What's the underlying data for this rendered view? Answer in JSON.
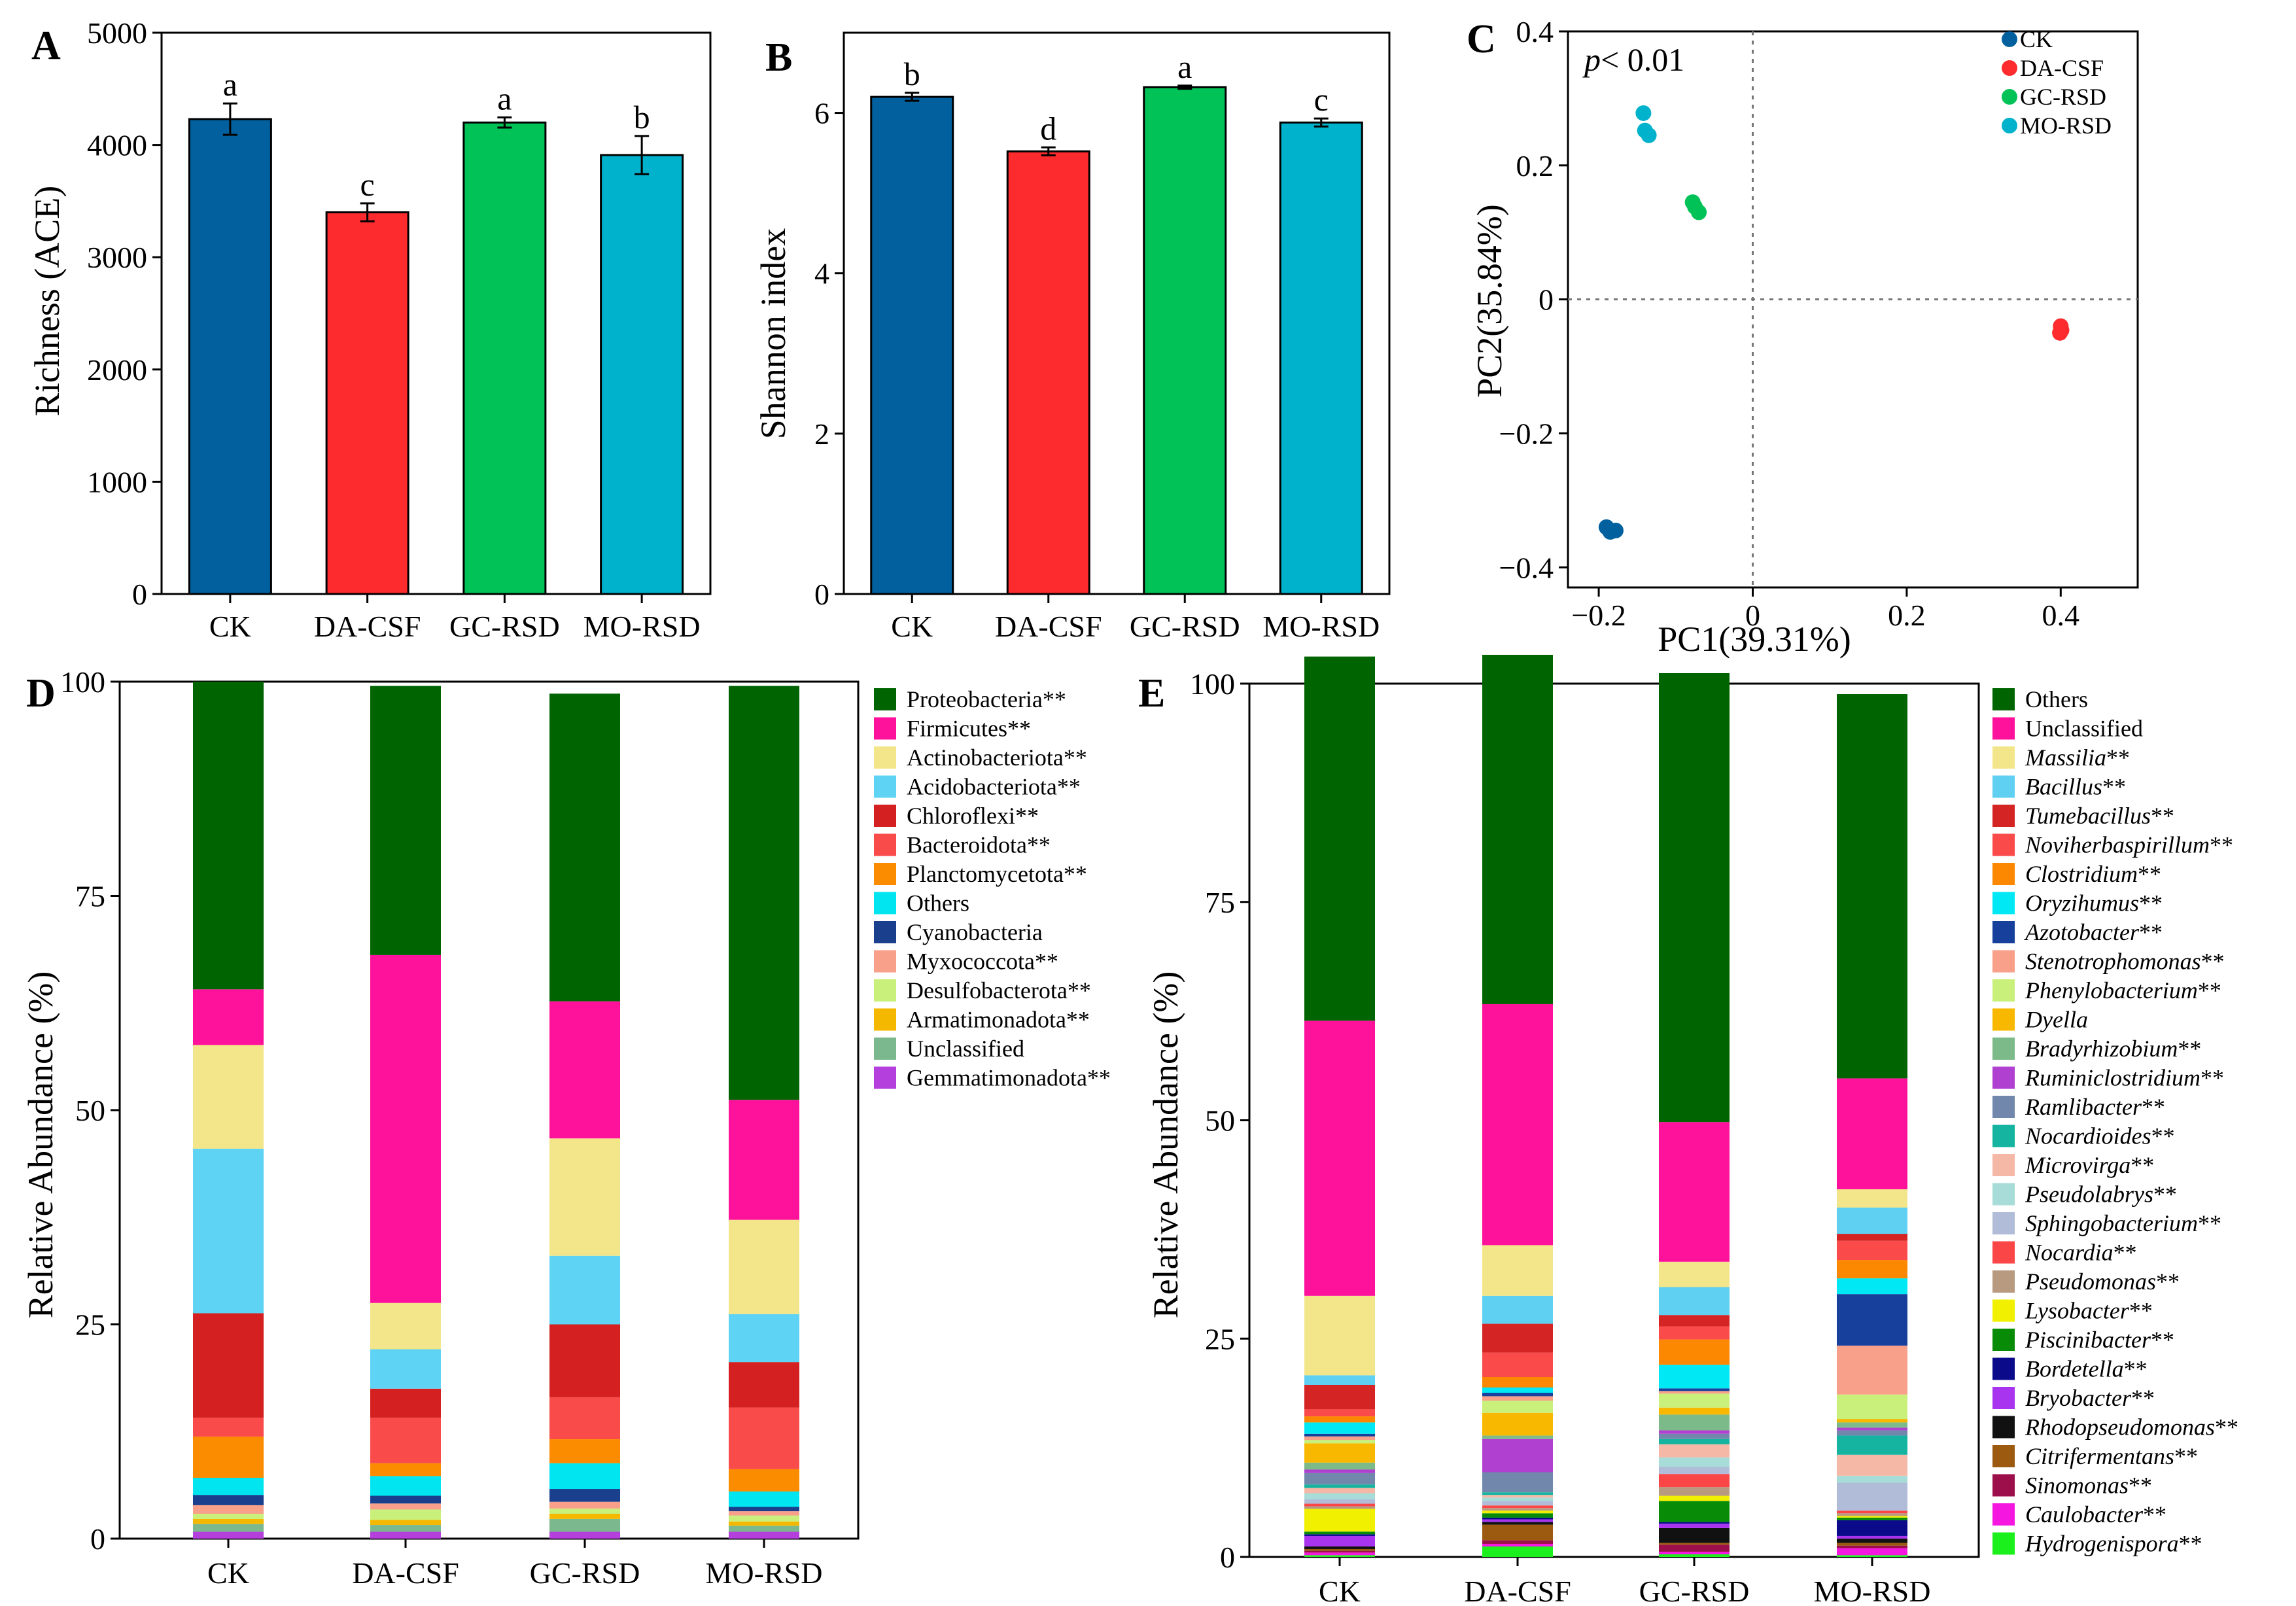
{
  "colors": {
    "CK": "#02609e",
    "DA-CSF": "#fd2a2e",
    "GC-RSD": "#00c256",
    "MO-RSD": "#00b2cc"
  },
  "panels": {
    "A": {
      "letter": "A"
    },
    "B": {
      "letter": "B"
    },
    "C": {
      "letter": "C",
      "pvalue": "< 0.01",
      "pvalue_p": "p"
    },
    "D": {
      "letter": "D"
    },
    "E": {
      "letter": "E"
    }
  },
  "chart_data": [
    {
      "id": "A",
      "type": "bar",
      "ylabel": "Richness (ACE)",
      "xlabel": "",
      "ylim": [
        0,
        5000
      ],
      "yticks": [
        0,
        1000,
        2000,
        3000,
        4000,
        5000
      ],
      "categories": [
        "CK",
        "DA-CSF",
        "GC-RSD",
        "MO-RSD"
      ],
      "values": [
        4230,
        3400,
        4200,
        3910
      ],
      "errors": [
        140,
        80,
        45,
        170
      ],
      "letters": [
        "a",
        "c",
        "a",
        "b"
      ]
    },
    {
      "id": "B",
      "type": "bar",
      "ylabel": "Shannon index",
      "xlabel": "",
      "ylim": [
        0,
        7
      ],
      "yticks": [
        0,
        2,
        4,
        6
      ],
      "categories": [
        "CK",
        "DA-CSF",
        "GC-RSD",
        "MO-RSD"
      ],
      "values": [
        6.2,
        5.52,
        6.32,
        5.88
      ],
      "errors": [
        0.05,
        0.05,
        0.02,
        0.05
      ],
      "letters": [
        "b",
        "d",
        "a",
        "c"
      ]
    },
    {
      "id": "C",
      "type": "scatter",
      "xlabel": "PC1(39.31%)",
      "ylabel": "PC2(35.84%)",
      "xlim": [
        -0.24,
        0.5
      ],
      "ylim": [
        -0.43,
        0.4
      ],
      "xticks": [
        -0.2,
        0,
        0.2,
        0.4
      ],
      "xtick_labels": [
        "−0.2",
        "0",
        "0.2",
        "0.4"
      ],
      "yticks": [
        -0.4,
        -0.2,
        0,
        0.2,
        0.4
      ],
      "ytick_labels": [
        "−0.4",
        "−0.2",
        "0",
        "0.2",
        "0.4"
      ],
      "series": [
        {
          "name": "CK",
          "points": [
            [
              -0.19,
              -0.34
            ],
            [
              -0.185,
              -0.347
            ],
            [
              -0.178,
              -0.345
            ]
          ]
        },
        {
          "name": "DA-CSF",
          "points": [
            [
              0.4,
              -0.04
            ],
            [
              0.401,
              -0.046
            ],
            [
              0.399,
              -0.05
            ]
          ]
        },
        {
          "name": "GC-RSD",
          "points": [
            [
              -0.078,
              0.145
            ],
            [
              -0.075,
              0.138
            ],
            [
              -0.07,
              0.13
            ]
          ]
        },
        {
          "name": "MO-RSD",
          "points": [
            [
              -0.142,
              0.278
            ],
            [
              -0.14,
              0.252
            ],
            [
              -0.135,
              0.245
            ]
          ]
        }
      ]
    },
    {
      "id": "D",
      "type": "bar",
      "stacked": true,
      "ylabel": "Relative Abundance (%)",
      "ylim": [
        0,
        100
      ],
      "yticks": [
        0,
        25,
        50,
        75,
        100
      ],
      "categories": [
        "CK",
        "DA-CSF",
        "GC-RSD",
        "MO-RSD"
      ],
      "series": [
        {
          "name": "Gemmatimonadota**",
          "color": "#b43fdc",
          "values": [
            0.8,
            0.8,
            0.8,
            0.8
          ]
        },
        {
          "name": "Unclassified",
          "color": "#7cb88e",
          "values": [
            0.9,
            0.8,
            1.5,
            0.7
          ]
        },
        {
          "name": "Armatimonadota**",
          "color": "#f5b800",
          "values": [
            0.6,
            0.6,
            0.6,
            0.5
          ]
        },
        {
          "name": "Desulfobacterota**",
          "color": "#c8f07a",
          "values": [
            0.6,
            1.2,
            0.6,
            0.7
          ]
        },
        {
          "name": "Myxococcota**",
          "color": "#f8a08a",
          "values": [
            1.0,
            0.7,
            0.8,
            0.5
          ]
        },
        {
          "name": "Cyanobacteria",
          "color": "#1a3f8c",
          "values": [
            1.2,
            0.9,
            1.5,
            0.5
          ]
        },
        {
          "name": "Others",
          "color": "#00e5f0",
          "values": [
            2.0,
            2.3,
            3.0,
            1.8
          ]
        },
        {
          "name": "Planctomycetota**",
          "color": "#fb8c00",
          "values": [
            4.8,
            1.5,
            2.8,
            2.6
          ]
        },
        {
          "name": "Bacteroidota**",
          "color": "#fa4b4b",
          "values": [
            2.2,
            5.3,
            4.9,
            7.2
          ]
        },
        {
          "name": "Chloroflexi**",
          "color": "#d42020",
          "values": [
            12.2,
            3.4,
            8.5,
            5.3
          ]
        },
        {
          "name": "Acidobacteriota**",
          "color": "#5fd3f4",
          "values": [
            19.2,
            4.6,
            8.0,
            5.6
          ]
        },
        {
          "name": "Actinobacteriota**",
          "color": "#f3e68a",
          "values": [
            12.1,
            5.4,
            13.7,
            11.0
          ]
        },
        {
          "name": "Firmicutes**",
          "color": "#fe129c",
          "values": [
            6.5,
            40.6,
            16.0,
            14.0
          ]
        },
        {
          "name": "Proteobacteria**",
          "color": "#006400",
          "values": [
            35.9,
            31.4,
            35.9,
            48.3
          ]
        }
      ]
    },
    {
      "id": "E",
      "type": "bar",
      "stacked": true,
      "ylabel": "Relative Abundance (%)",
      "ylim": [
        0,
        100
      ],
      "yticks": [
        0,
        25,
        50,
        75,
        100
      ],
      "categories": [
        "CK",
        "DA-CSF",
        "GC-RSD",
        "MO-RSD"
      ],
      "series": [
        {
          "name": "Hydrogenispora**",
          "color": "#1cf01c",
          "values": [
            0.2,
            1.2,
            0.3,
            0.2
          ]
        },
        {
          "name": "Caulobacter**",
          "color": "#f516e0",
          "values": [
            0.3,
            0.3,
            0.3,
            0.8
          ]
        },
        {
          "name": "Sinomonas**",
          "color": "#9c0f4a",
          "values": [
            0.2,
            0.4,
            0.8,
            0.3
          ]
        },
        {
          "name": "Citrifermentans**",
          "color": "#9b5a10",
          "values": [
            0.2,
            1.8,
            0.2,
            0.3
          ]
        },
        {
          "name": "Rhodopseudomonas**",
          "color": "#111111",
          "values": [
            0.3,
            0.3,
            1.7,
            0.5
          ]
        },
        {
          "name": "Bryobacter**",
          "color": "#a834f0",
          "values": [
            1.2,
            0.3,
            0.5,
            0.3
          ]
        },
        {
          "name": "Bordetella**",
          "color": "#0a0a8a",
          "values": [
            0.2,
            0.2,
            0.2,
            1.8
          ]
        },
        {
          "name": "Piscinibacter**",
          "color": "#088c08",
          "values": [
            0.3,
            0.5,
            2.4,
            0.3
          ]
        },
        {
          "name": "Lysobacter**",
          "color": "#f0f000",
          "values": [
            2.6,
            0.3,
            0.6,
            0.2
          ]
        },
        {
          "name": "Pseudomonas**",
          "color": "#b89a80",
          "values": [
            0.3,
            0.3,
            1.0,
            0.3
          ]
        },
        {
          "name": "Nocardia**",
          "color": "#fa4646",
          "values": [
            0.3,
            0.3,
            1.5,
            0.3
          ]
        },
        {
          "name": "Sphingobacterium**",
          "color": "#b0bcd8",
          "values": [
            0.5,
            0.5,
            0.8,
            3.2
          ]
        },
        {
          "name": "Pseudolabrys**",
          "color": "#a8dcd8",
          "values": [
            0.7,
            0.4,
            1.1,
            0.8
          ]
        },
        {
          "name": "Microvirga**",
          "color": "#f6b8a6",
          "values": [
            0.6,
            0.3,
            1.5,
            2.4
          ]
        },
        {
          "name": "Nocardioides**",
          "color": "#14b4a0",
          "values": [
            0.4,
            0.3,
            0.6,
            2.2
          ]
        },
        {
          "name": "Ramlibacter**",
          "color": "#7188ac",
          "values": [
            1.3,
            2.3,
            0.6,
            0.6
          ]
        },
        {
          "name": "Ruminiclostridium**",
          "color": "#b040d0",
          "values": [
            0.4,
            3.8,
            0.4,
            0.3
          ]
        },
        {
          "name": "Bradyrhizobium**",
          "color": "#7cba8a",
          "values": [
            0.8,
            0.4,
            1.8,
            0.6
          ]
        },
        {
          "name": "Dyella",
          "color": "#f8b800",
          "values": [
            2.2,
            2.6,
            0.8,
            0.4
          ]
        },
        {
          "name": "Phenylobacterium**",
          "color": "#c8f07a",
          "values": [
            0.4,
            1.4,
            1.6,
            2.8
          ]
        },
        {
          "name": "Stenotrophomonas**",
          "color": "#f8a08a",
          "values": [
            0.4,
            0.5,
            0.3,
            5.6
          ]
        },
        {
          "name": "Azotobacter**",
          "color": "#16409c",
          "values": [
            0.3,
            0.4,
            0.3,
            5.9
          ]
        },
        {
          "name": "Oryzihumus**",
          "color": "#00e8f4",
          "values": [
            1.3,
            0.6,
            2.7,
            1.8
          ]
        },
        {
          "name": "Clostridium**",
          "color": "#fb8800",
          "values": [
            0.7,
            1.2,
            2.9,
            2.1
          ]
        },
        {
          "name": "Noviherbaspirillum**",
          "color": "#fa4a4a",
          "values": [
            0.8,
            2.8,
            1.5,
            2.2
          ]
        },
        {
          "name": "Tumebacillus**",
          "color": "#d42424",
          "values": [
            2.8,
            3.3,
            1.3,
            0.8
          ]
        },
        {
          "name": "Bacillus**",
          "color": "#5fcff2",
          "values": [
            1.1,
            3.2,
            3.2,
            3.0
          ]
        },
        {
          "name": "Massilia**",
          "color": "#f3e68a",
          "values": [
            9.1,
            5.8,
            2.9,
            2.1
          ]
        },
        {
          "name": "Unclassified",
          "color": "#fe129c",
          "values": [
            31.5,
            27.6,
            16.0,
            12.7
          ]
        },
        {
          "name": "Others",
          "color": "#006400",
          "values": [
            41.7,
            40.0,
            51.4,
            44.0
          ]
        }
      ]
    }
  ]
}
